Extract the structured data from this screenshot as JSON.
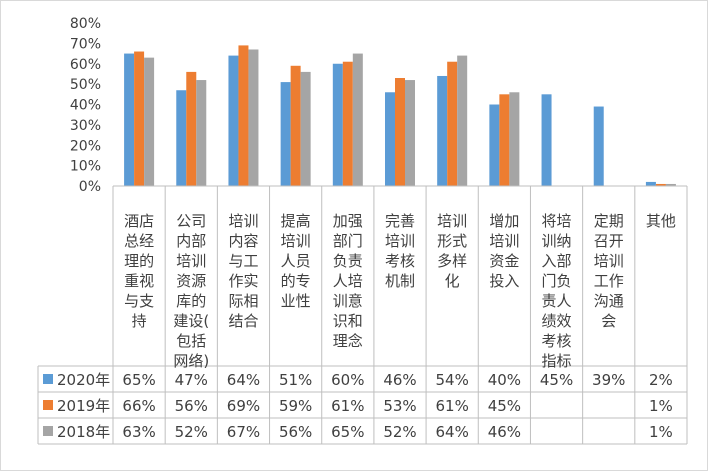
{
  "chart_data": {
    "type": "bar",
    "categories": [
      "酒店总经理的重视与支持",
      "公司内部培训资源库的建设(包括网络)",
      "培训内容与工作实际相结合",
      "提高培训人员的专业性",
      "加强部门负责人培训意识和理念",
      "完善培训考核机制",
      "培训形式多样化",
      "增加培训资金投入",
      "将培训纳入部门负责人绩效考核指标",
      "定期召开培训工作沟通会",
      "其他"
    ],
    "category_lines": [
      [
        "酒店",
        "总经",
        "理的",
        "重视",
        "与支",
        "持"
      ],
      [
        "公司",
        "内部",
        "培训",
        "资源",
        "库的",
        "建设(",
        "包括",
        "网络)"
      ],
      [
        "培训",
        "内容",
        "与工",
        "作实",
        "际相",
        "结合"
      ],
      [
        "提高",
        "培训",
        "人员",
        "的专",
        "业性"
      ],
      [
        "加强",
        "部门",
        "负责",
        "人培",
        "训意",
        "识和",
        "理念"
      ],
      [
        "完善",
        "培训",
        "考核",
        "机制"
      ],
      [
        "培训",
        "形式",
        "多样",
        "化"
      ],
      [
        "增加",
        "培训",
        "资金",
        "投入"
      ],
      [
        "将培",
        "训纳",
        "入部",
        "门负",
        "责人",
        "绩效",
        "考核",
        "指标"
      ],
      [
        "定期",
        "召开",
        "培训",
        "工作",
        "沟通",
        "会"
      ],
      [
        "其他"
      ]
    ],
    "series": [
      {
        "name": "2020年",
        "color": "#5b9bd5",
        "values": [
          65,
          47,
          64,
          51,
          60,
          46,
          54,
          40,
          45,
          39,
          2
        ],
        "labels": [
          "65%",
          "47%",
          "64%",
          "51%",
          "60%",
          "46%",
          "54%",
          "40%",
          "45%",
          "39%",
          "2%"
        ]
      },
      {
        "name": "2019年",
        "color": "#ed7d31",
        "values": [
          66,
          56,
          69,
          59,
          61,
          53,
          61,
          45,
          null,
          null,
          1
        ],
        "labels": [
          "66%",
          "56%",
          "69%",
          "59%",
          "61%",
          "53%",
          "61%",
          "45%",
          "",
          "",
          "1%"
        ]
      },
      {
        "name": "2018年",
        "color": "#a5a5a5",
        "values": [
          63,
          52,
          67,
          56,
          65,
          52,
          64,
          46,
          null,
          null,
          1
        ],
        "labels": [
          "63%",
          "52%",
          "67%",
          "56%",
          "65%",
          "52%",
          "64%",
          "46%",
          "",
          "",
          "1%"
        ]
      }
    ],
    "y_ticks": [
      "0%",
      "10%",
      "20%",
      "30%",
      "40%",
      "50%",
      "60%",
      "70%",
      "80%"
    ],
    "ylim": [
      0,
      80
    ],
    "grid": false,
    "legend": "data-table-left"
  }
}
